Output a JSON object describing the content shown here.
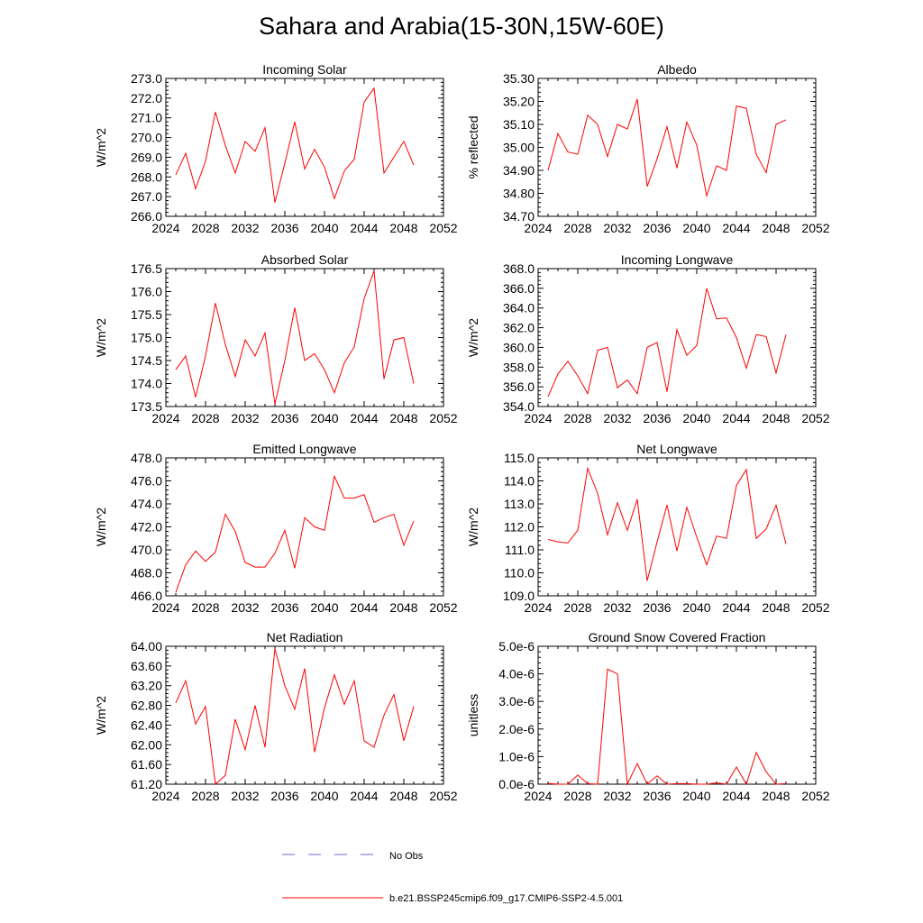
{
  "page": {
    "title": "Sahara and Arabia(15-30N,15W-60E)"
  },
  "legend": {
    "items": [
      {
        "label": "No Obs",
        "color": "#6a6ad0",
        "style": "dashed"
      },
      {
        "label": "b.e21.BSSP245cmip6.f09_g17.CMIP6-SSP2-4.5.001",
        "color": "#ff0000",
        "style": "solid"
      }
    ]
  },
  "chart_data": [
    {
      "type": "line",
      "title": "Incoming Solar",
      "ylabel": "W/m^2",
      "xlim": [
        2024,
        2052
      ],
      "xticks": [
        "2024",
        "2028",
        "2032",
        "2036",
        "2040",
        "2044",
        "2048",
        "2052"
      ],
      "ylim": [
        266.0,
        273.0
      ],
      "yticks": [
        "266.0",
        "267.0",
        "268.0",
        "269.0",
        "270.0",
        "271.0",
        "272.0",
        "273.0"
      ],
      "series": [
        {
          "color": "#ff0000",
          "x": [
            2025,
            2026,
            2027,
            2028,
            2029,
            2030,
            2031,
            2032,
            2033,
            2034,
            2035,
            2036,
            2037,
            2038,
            2039,
            2040,
            2041,
            2042,
            2043,
            2044,
            2045,
            2046,
            2047,
            2048,
            2049
          ],
          "y": [
            268.1,
            269.2,
            267.4,
            268.8,
            271.3,
            269.6,
            268.2,
            269.8,
            269.3,
            270.5,
            266.7,
            268.7,
            270.8,
            268.4,
            269.4,
            268.5,
            266.9,
            268.3,
            268.9,
            271.8,
            272.5,
            268.2,
            269.0,
            269.8,
            268.6
          ]
        }
      ]
    },
    {
      "type": "line",
      "title": "Albedo",
      "ylabel": "% reflected",
      "xlim": [
        2024,
        2052
      ],
      "xticks": [
        "2024",
        "2028",
        "2032",
        "2036",
        "2040",
        "2044",
        "2048",
        "2052"
      ],
      "ylim": [
        34.7,
        35.3
      ],
      "yticks": [
        "34.70",
        "34.80",
        "34.90",
        "35.00",
        "35.10",
        "35.20",
        "35.30"
      ],
      "series": [
        {
          "color": "#ff0000",
          "x": [
            2025,
            2026,
            2027,
            2028,
            2029,
            2030,
            2031,
            2032,
            2033,
            2034,
            2035,
            2036,
            2037,
            2038,
            2039,
            2040,
            2041,
            2042,
            2043,
            2044,
            2045,
            2046,
            2047,
            2048,
            2049
          ],
          "y": [
            34.9,
            35.06,
            34.98,
            34.97,
            35.14,
            35.1,
            34.96,
            35.1,
            35.08,
            35.21,
            34.83,
            34.95,
            35.09,
            34.91,
            35.11,
            35.01,
            34.79,
            34.92,
            34.9,
            35.18,
            35.17,
            34.97,
            34.89,
            35.1,
            35.12
          ]
        }
      ]
    },
    {
      "type": "line",
      "title": "Absorbed Solar",
      "ylabel": "W/m^2",
      "xlim": [
        2024,
        2052
      ],
      "xticks": [
        "2024",
        "2028",
        "2032",
        "2036",
        "2040",
        "2044",
        "2048",
        "2052"
      ],
      "ylim": [
        173.5,
        176.5
      ],
      "yticks": [
        "173.5",
        "174.0",
        "174.5",
        "175.0",
        "175.5",
        "176.0",
        "176.5"
      ],
      "series": [
        {
          "color": "#ff0000",
          "x": [
            2025,
            2026,
            2027,
            2028,
            2029,
            2030,
            2031,
            2032,
            2033,
            2034,
            2035,
            2036,
            2037,
            2038,
            2039,
            2040,
            2041,
            2042,
            2043,
            2044,
            2045,
            2046,
            2047,
            2048,
            2049
          ],
          "y": [
            174.3,
            174.6,
            173.7,
            174.6,
            175.75,
            174.85,
            174.15,
            174.95,
            174.6,
            175.1,
            173.55,
            174.5,
            175.65,
            174.5,
            174.65,
            174.3,
            173.8,
            174.45,
            174.8,
            175.85,
            176.45,
            174.1,
            174.95,
            175.0,
            174.0
          ]
        }
      ]
    },
    {
      "type": "line",
      "title": "Incoming Longwave",
      "ylabel": "W/m^2",
      "xlim": [
        2024,
        2052
      ],
      "xticks": [
        "2024",
        "2028",
        "2032",
        "2036",
        "2040",
        "2044",
        "2048",
        "2052"
      ],
      "ylim": [
        354.0,
        368.0
      ],
      "yticks": [
        "354.0",
        "356.0",
        "358.0",
        "360.0",
        "362.0",
        "364.0",
        "366.0",
        "368.0"
      ],
      "series": [
        {
          "color": "#ff0000",
          "x": [
            2025,
            2026,
            2027,
            2028,
            2029,
            2030,
            2031,
            2032,
            2033,
            2034,
            2035,
            2036,
            2037,
            2038,
            2039,
            2040,
            2041,
            2042,
            2043,
            2044,
            2045,
            2046,
            2047,
            2048,
            2049
          ],
          "y": [
            355.0,
            357.3,
            358.6,
            357.1,
            355.3,
            359.7,
            360.0,
            355.9,
            356.7,
            355.3,
            360.0,
            360.5,
            355.5,
            361.8,
            359.2,
            360.2,
            366.0,
            362.9,
            363.0,
            361.0,
            357.9,
            361.3,
            361.1,
            357.4,
            361.3
          ]
        }
      ]
    },
    {
      "type": "line",
      "title": "Emitted Longwave",
      "ylabel": "W/m^2",
      "xlim": [
        2024,
        2052
      ],
      "xticks": [
        "2024",
        "2028",
        "2032",
        "2036",
        "2040",
        "2044",
        "2048",
        "2052"
      ],
      "ylim": [
        466.0,
        478.0
      ],
      "yticks": [
        "466.0",
        "468.0",
        "470.0",
        "472.0",
        "474.0",
        "476.0",
        "478.0"
      ],
      "series": [
        {
          "color": "#ff0000",
          "x": [
            2025,
            2026,
            2027,
            2028,
            2029,
            2030,
            2031,
            2032,
            2033,
            2034,
            2035,
            2036,
            2037,
            2038,
            2039,
            2040,
            2041,
            2042,
            2043,
            2044,
            2045,
            2046,
            2047,
            2048,
            2049
          ],
          "y": [
            466.3,
            468.7,
            469.9,
            469.0,
            469.8,
            473.1,
            471.6,
            468.9,
            468.5,
            468.5,
            469.7,
            471.7,
            468.4,
            472.8,
            472.0,
            471.7,
            476.4,
            474.5,
            474.5,
            474.8,
            472.4,
            472.8,
            473.1,
            470.4,
            472.5
          ]
        }
      ]
    },
    {
      "type": "line",
      "title": "Net Longwave",
      "ylabel": "W/m^2",
      "xlim": [
        2024,
        2052
      ],
      "xticks": [
        "2024",
        "2028",
        "2032",
        "2036",
        "2040",
        "2044",
        "2048",
        "2052"
      ],
      "ylim": [
        109.0,
        115.0
      ],
      "yticks": [
        "109.0",
        "110.0",
        "111.0",
        "112.0",
        "113.0",
        "114.0",
        "115.0"
      ],
      "series": [
        {
          "color": "#ff0000",
          "x": [
            2025,
            2026,
            2027,
            2028,
            2029,
            2030,
            2031,
            2032,
            2033,
            2034,
            2035,
            2036,
            2037,
            2038,
            2039,
            2040,
            2041,
            2042,
            2043,
            2044,
            2045,
            2046,
            2047,
            2048,
            2049
          ],
          "y": [
            111.45,
            111.35,
            111.3,
            111.85,
            114.55,
            113.45,
            111.65,
            113.05,
            111.85,
            113.2,
            109.65,
            111.35,
            112.95,
            110.95,
            112.85,
            111.55,
            110.35,
            111.6,
            111.5,
            113.8,
            114.5,
            111.5,
            111.9,
            112.95,
            111.25
          ]
        }
      ]
    },
    {
      "type": "line",
      "title": "Net Radiation",
      "ylabel": "W/m^2",
      "xlim": [
        2024,
        2052
      ],
      "xticks": [
        "2024",
        "2028",
        "2032",
        "2036",
        "2040",
        "2044",
        "2048",
        "2052"
      ],
      "ylim": [
        61.2,
        64.0
      ],
      "yticks": [
        "61.20",
        "61.60",
        "62.00",
        "62.40",
        "62.80",
        "63.20",
        "63.60",
        "64.00"
      ],
      "series": [
        {
          "color": "#ff0000",
          "x": [
            2025,
            2026,
            2027,
            2028,
            2029,
            2030,
            2031,
            2032,
            2033,
            2034,
            2035,
            2036,
            2037,
            2038,
            2039,
            2040,
            2041,
            2042,
            2043,
            2044,
            2045,
            2046,
            2047,
            2048,
            2049
          ],
          "y": [
            62.85,
            63.3,
            62.42,
            62.78,
            61.2,
            61.38,
            62.52,
            61.9,
            62.8,
            61.95,
            63.95,
            63.2,
            62.72,
            63.55,
            61.85,
            62.75,
            63.42,
            62.82,
            63.3,
            62.08,
            61.95,
            62.6,
            63.02,
            62.08,
            62.78
          ]
        }
      ]
    },
    {
      "type": "line",
      "title": "Ground Snow Covered Fraction",
      "ylabel": "unitless",
      "xlim": [
        2024,
        2052
      ],
      "xticks": [
        "2024",
        "2028",
        "2032",
        "2036",
        "2040",
        "2044",
        "2048",
        "2052"
      ],
      "ylim": [
        0,
        5e-06
      ],
      "yticks": [
        "0.0e-6",
        "1.0e-6",
        "2.0e-6",
        "3.0e-6",
        "4.0e-6",
        "5.0e-6"
      ],
      "series": [
        {
          "color": "#ff0000",
          "x": [
            2025,
            2026,
            2027,
            2028,
            2029,
            2030,
            2031,
            2032,
            2033,
            2034,
            2035,
            2036,
            2037,
            2038,
            2039,
            2040,
            2041,
            2042,
            2043,
            2044,
            2045,
            2046,
            2047,
            2048,
            2049
          ],
          "y": [
            3e-08,
            0.0,
            0.0,
            3.3e-07,
            2e-08,
            0.0,
            4.17e-06,
            4e-06,
            0.0,
            7.5e-07,
            0.0,
            3e-07,
            0.0,
            2e-08,
            2e-08,
            0.0,
            0.0,
            5e-08,
            0.0,
            6.2e-07,
            0.0,
            1.15e-06,
            4.5e-07,
            0.0,
            2e-08
          ]
        }
      ]
    }
  ]
}
